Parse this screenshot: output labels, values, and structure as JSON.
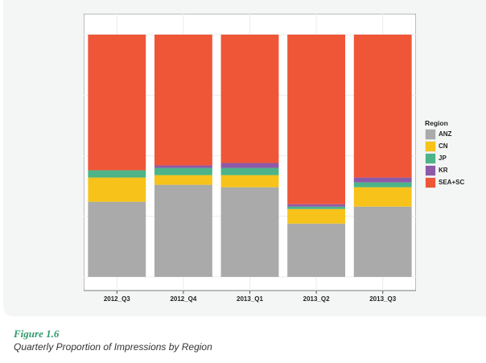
{
  "chart_data": {
    "type": "bar",
    "stacked": true,
    "normalized": true,
    "categories": [
      "2012_Q3",
      "2012_Q4",
      "2013_Q1",
      "2013_Q2",
      "2013_Q3"
    ],
    "series": [
      {
        "name": "ANZ",
        "color": "#a9aaa9",
        "values": [
          0.31,
          0.38,
          0.37,
          0.22,
          0.29
        ]
      },
      {
        "name": "CN",
        "color": "#f7c31a",
        "values": [
          0.1,
          0.04,
          0.05,
          0.06,
          0.08
        ]
      },
      {
        "name": "JP",
        "color": "#4cb488",
        "values": [
          0.03,
          0.03,
          0.03,
          0.01,
          0.02
        ]
      },
      {
        "name": "KR",
        "color": "#8e5aa8",
        "values": [
          0.0,
          0.01,
          0.02,
          0.01,
          0.02
        ]
      },
      {
        "name": "SEA+SC",
        "color": "#ef5638",
        "values": [
          0.56,
          0.54,
          0.53,
          0.7,
          0.59
        ]
      }
    ],
    "ylim": [
      0,
      1
    ],
    "grid": true,
    "legend_title": "Region",
    "legend_position": "right",
    "xlabel": "",
    "ylabel": "",
    "title": ""
  },
  "figure": {
    "label": "Figure 1.6",
    "caption": "Quarterly Proportion of Impressions by Region"
  }
}
